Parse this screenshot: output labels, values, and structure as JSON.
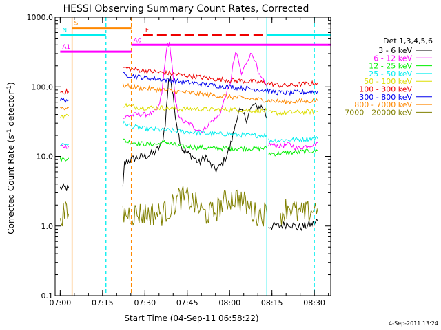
{
  "chart_data": {
    "type": "line",
    "title": "HESSI Observing Summary Count Rates, Corrected",
    "xlabel": "Start Time (04-Sep-11 06:58:22)",
    "ylabel_main": "Corrected Count Rate (s",
    "ylabel_sup1": "-1",
    "ylabel_mid": " detector",
    "ylabel_sup2": "-1",
    "ylabel_end": ")",
    "yscale": "log",
    "ylim": [
      0.1,
      1000
    ],
    "yticks": [
      "0.1",
      "1.0",
      "10.0",
      "100.0",
      "1000.0"
    ],
    "xlim": [
      -0.03,
      1.597
    ],
    "xticks": [
      {
        "label": "07:00",
        "t": 0.0
      },
      {
        "label": "07:15",
        "t": 0.25
      },
      {
        "label": "07:30",
        "t": 0.5
      },
      {
        "label": "07:45",
        "t": 0.75
      },
      {
        "label": "08:00",
        "t": 1.0
      },
      {
        "label": "08:15",
        "t": 1.25
      },
      {
        "label": "08:30",
        "t": 1.5
      }
    ],
    "timestamp": "4-Sep-2011 13:24",
    "legend_title": "Det 1,3,4,5,6",
    "series": [
      {
        "name": "3 - 6 keV",
        "color": "#000000",
        "points": [
          [
            0.0,
            3.5
          ],
          [
            0.05,
            3.5
          ],
          [
            0.06,
            null
          ],
          [
            0.37,
            3.5
          ],
          [
            0.38,
            8
          ],
          [
            0.42,
            9
          ],
          [
            0.45,
            9.5
          ],
          [
            0.5,
            10
          ],
          [
            0.55,
            11
          ],
          [
            0.58,
            13
          ],
          [
            0.6,
            15
          ],
          [
            0.62,
            30
          ],
          [
            0.64,
            120
          ],
          [
            0.65,
            150
          ],
          [
            0.66,
            90
          ],
          [
            0.68,
            40
          ],
          [
            0.7,
            20
          ],
          [
            0.72,
            13
          ],
          [
            0.75,
            11
          ],
          [
            0.78,
            10
          ],
          [
            0.8,
            9
          ],
          [
            0.82,
            8
          ],
          [
            0.84,
            9
          ],
          [
            0.86,
            10
          ],
          [
            0.88,
            8
          ],
          [
            0.9,
            7
          ],
          [
            0.92,
            6.5
          ],
          [
            0.94,
            7
          ],
          [
            0.96,
            8
          ],
          [
            0.98,
            10
          ],
          [
            1.0,
            13
          ],
          [
            1.02,
            20
          ],
          [
            1.04,
            35
          ],
          [
            1.06,
            45
          ],
          [
            1.08,
            40
          ],
          [
            1.1,
            35
          ],
          [
            1.12,
            45
          ],
          [
            1.14,
            55
          ],
          [
            1.16,
            50
          ],
          [
            1.18,
            52
          ],
          [
            1.2,
            50
          ],
          [
            1.22,
            35
          ],
          [
            1.225,
            null
          ],
          [
            1.23,
            1.0
          ],
          [
            1.3,
            1.0
          ],
          [
            1.35,
            1.1
          ],
          [
            1.4,
            0.95
          ],
          [
            1.45,
            1.0
          ],
          [
            1.5,
            1.1
          ],
          [
            1.52,
            1.2
          ]
        ]
      },
      {
        "name": "6 - 12 keV",
        "color": "#ff00ff",
        "points": [
          [
            0.0,
            14
          ],
          [
            0.05,
            14
          ],
          [
            0.06,
            null
          ],
          [
            0.37,
            35
          ],
          [
            0.4,
            38
          ],
          [
            0.45,
            40
          ],
          [
            0.5,
            40
          ],
          [
            0.55,
            42
          ],
          [
            0.58,
            50
          ],
          [
            0.6,
            80
          ],
          [
            0.62,
            250
          ],
          [
            0.635,
            400
          ],
          [
            0.645,
            430
          ],
          [
            0.66,
            200
          ],
          [
            0.68,
            60
          ],
          [
            0.7,
            40
          ],
          [
            0.72,
            32
          ],
          [
            0.75,
            30
          ],
          [
            0.78,
            28
          ],
          [
            0.8,
            25
          ],
          [
            0.82,
            24
          ],
          [
            0.84,
            23
          ],
          [
            0.86,
            26
          ],
          [
            0.88,
            30
          ],
          [
            0.9,
            33
          ],
          [
            0.92,
            35
          ],
          [
            0.94,
            40
          ],
          [
            0.96,
            55
          ],
          [
            0.98,
            80
          ],
          [
            1.0,
            100
          ],
          [
            1.01,
            140
          ],
          [
            1.02,
            200
          ],
          [
            1.035,
            310
          ],
          [
            1.05,
            250
          ],
          [
            1.07,
            150
          ],
          [
            1.09,
            200
          ],
          [
            1.11,
            260
          ],
          [
            1.13,
            300
          ],
          [
            1.15,
            250
          ],
          [
            1.17,
            150
          ],
          [
            1.2,
            120
          ],
          [
            1.22,
            100
          ],
          [
            1.225,
            null
          ],
          [
            1.23,
            15
          ],
          [
            1.3,
            14
          ],
          [
            1.35,
            15
          ],
          [
            1.4,
            13
          ],
          [
            1.45,
            14
          ],
          [
            1.5,
            15
          ],
          [
            1.52,
            16
          ]
        ]
      },
      {
        "name": "12 - 25 keV",
        "color": "#00ee00",
        "points": [
          [
            0.0,
            9
          ],
          [
            0.05,
            9.5
          ],
          [
            0.06,
            null
          ],
          [
            0.37,
            17
          ],
          [
            0.42,
            16
          ],
          [
            0.5,
            15
          ],
          [
            0.58,
            15
          ],
          [
            0.62,
            16
          ],
          [
            0.66,
            15
          ],
          [
            0.7,
            14
          ],
          [
            0.8,
            13.5
          ],
          [
            0.9,
            13
          ],
          [
            1.0,
            13
          ],
          [
            1.1,
            13
          ],
          [
            1.2,
            13
          ],
          [
            1.22,
            13
          ],
          [
            1.225,
            null
          ],
          [
            1.23,
            11
          ],
          [
            1.3,
            11
          ],
          [
            1.4,
            11.5
          ],
          [
            1.5,
            12
          ],
          [
            1.52,
            12
          ]
        ]
      },
      {
        "name": "25 - 50 keV",
        "color": "#00eeee",
        "points": [
          [
            0.0,
            15
          ],
          [
            0.05,
            15
          ],
          [
            0.06,
            null
          ],
          [
            0.37,
            30
          ],
          [
            0.42,
            27
          ],
          [
            0.5,
            25
          ],
          [
            0.6,
            24
          ],
          [
            0.7,
            23
          ],
          [
            0.8,
            22
          ],
          [
            0.9,
            21
          ],
          [
            1.0,
            21
          ],
          [
            1.1,
            20
          ],
          [
            1.2,
            20
          ],
          [
            1.22,
            20
          ],
          [
            1.225,
            null
          ],
          [
            1.23,
            17
          ],
          [
            1.3,
            17
          ],
          [
            1.4,
            17.5
          ],
          [
            1.5,
            18
          ],
          [
            1.52,
            18
          ]
        ]
      },
      {
        "name": "50 - 100 keV",
        "color": "#dddd00",
        "points": [
          [
            0.0,
            38
          ],
          [
            0.05,
            38
          ],
          [
            0.06,
            null
          ],
          [
            0.37,
            55
          ],
          [
            0.42,
            52
          ],
          [
            0.5,
            50
          ],
          [
            0.6,
            50
          ],
          [
            0.7,
            48
          ],
          [
            0.8,
            48
          ],
          [
            0.9,
            47
          ],
          [
            1.0,
            47
          ],
          [
            1.1,
            46
          ],
          [
            1.2,
            45
          ],
          [
            1.22,
            45
          ],
          [
            1.225,
            null
          ],
          [
            1.23,
            42
          ],
          [
            1.3,
            42
          ],
          [
            1.4,
            43
          ],
          [
            1.5,
            44
          ],
          [
            1.52,
            44
          ]
        ]
      },
      {
        "name": "100 - 300 keV",
        "color": "#ee0000",
        "points": [
          [
            0.0,
            85
          ],
          [
            0.05,
            85
          ],
          [
            0.06,
            null
          ],
          [
            0.37,
            190
          ],
          [
            0.42,
            180
          ],
          [
            0.5,
            170
          ],
          [
            0.6,
            160
          ],
          [
            0.7,
            150
          ],
          [
            0.8,
            140
          ],
          [
            0.9,
            130
          ],
          [
            1.0,
            125
          ],
          [
            1.1,
            120
          ],
          [
            1.2,
            115
          ],
          [
            1.25,
            110
          ],
          [
            1.3,
            105
          ],
          [
            1.35,
            105
          ],
          [
            1.4,
            108
          ],
          [
            1.45,
            110
          ],
          [
            1.5,
            112
          ],
          [
            1.52,
            115
          ]
        ]
      },
      {
        "name": "300 - 800 keV",
        "color": "#0000ee",
        "points": [
          [
            0.0,
            65
          ],
          [
            0.05,
            65
          ],
          [
            0.06,
            null
          ],
          [
            0.37,
            150
          ],
          [
            0.42,
            145
          ],
          [
            0.5,
            135
          ],
          [
            0.6,
            128
          ],
          [
            0.7,
            120
          ],
          [
            0.8,
            112
          ],
          [
            0.9,
            105
          ],
          [
            1.0,
            100
          ],
          [
            1.1,
            95
          ],
          [
            1.2,
            90
          ],
          [
            1.25,
            85
          ],
          [
            1.3,
            82
          ],
          [
            1.35,
            82
          ],
          [
            1.4,
            83
          ],
          [
            1.45,
            84
          ],
          [
            1.5,
            85
          ],
          [
            1.52,
            86
          ]
        ]
      },
      {
        "name": "800 - 7000 keV",
        "color": "#ff8800",
        "points": [
          [
            0.0,
            50
          ],
          [
            0.05,
            50
          ],
          [
            0.06,
            null
          ],
          [
            0.37,
            105
          ],
          [
            0.42,
            100
          ],
          [
            0.5,
            95
          ],
          [
            0.6,
            90
          ],
          [
            0.7,
            85
          ],
          [
            0.8,
            80
          ],
          [
            0.9,
            76
          ],
          [
            1.0,
            72
          ],
          [
            1.1,
            68
          ],
          [
            1.2,
            65
          ],
          [
            1.25,
            63
          ],
          [
            1.3,
            61
          ],
          [
            1.35,
            61
          ],
          [
            1.4,
            62
          ],
          [
            1.45,
            62
          ],
          [
            1.5,
            63
          ],
          [
            1.52,
            63
          ]
        ]
      },
      {
        "name": "7000 - 20000 keV",
        "color": "#808000",
        "points": [
          [
            0.0,
            1.5
          ],
          [
            0.05,
            1.5
          ],
          [
            0.06,
            null
          ],
          [
            0.37,
            1.5
          ],
          [
            0.55,
            1.5
          ],
          [
            0.6,
            1.5
          ],
          [
            0.65,
            1.8
          ],
          [
            0.7,
            2.5
          ],
          [
            0.75,
            2.5
          ],
          [
            0.8,
            2.0
          ],
          [
            0.85,
            1.5
          ],
          [
            0.9,
            1.5
          ],
          [
            0.95,
            2.0
          ],
          [
            1.0,
            2.5
          ],
          [
            1.05,
            2.5
          ],
          [
            1.1,
            2.0
          ],
          [
            1.15,
            1.5
          ],
          [
            1.2,
            1.5
          ],
          [
            1.22,
            1.5
          ],
          [
            1.225,
            null
          ],
          [
            1.3,
            1.5
          ],
          [
            1.35,
            2.0
          ],
          [
            1.4,
            1.5
          ],
          [
            1.45,
            1.5
          ],
          [
            1.5,
            1.8
          ],
          [
            1.52,
            1.8
          ]
        ]
      }
    ],
    "annotations": {
      "lines": [
        {
          "label": "S",
          "color": "#ff8800",
          "value": 700,
          "t0": 0.07,
          "t1": 0.42
        },
        {
          "label": "N",
          "color": "#00eeee",
          "value": 560,
          "t0": 0.0,
          "t1": 0.27
        },
        {
          "label": "F",
          "color": "#ee0000",
          "value": 560,
          "t0": 0.49,
          "t1": 1.22,
          "dashed": true
        },
        {
          "label": "A0",
          "color": "#ff00ff",
          "value": 400,
          "t0": 0.42,
          "t1": 1.597
        },
        {
          "label": "A1",
          "color": "#ff00ff",
          "value": 320,
          "t0": 0.0,
          "t1": 0.42
        },
        {
          "label": "",
          "color": "#00eeee",
          "value": 560,
          "t0": 1.22,
          "t1": 1.597
        }
      ],
      "vlines": [
        {
          "t": 0.07,
          "color": "#ff8800",
          "style": "solid"
        },
        {
          "t": 0.27,
          "color": "#00eeee",
          "style": "dashed"
        },
        {
          "t": 0.42,
          "color": "#ff8800",
          "style": "dashed"
        },
        {
          "t": 1.22,
          "color": "#00eeee",
          "style": "solid"
        },
        {
          "t": 1.5,
          "color": "#00eeee",
          "style": "dashed"
        }
      ]
    }
  }
}
